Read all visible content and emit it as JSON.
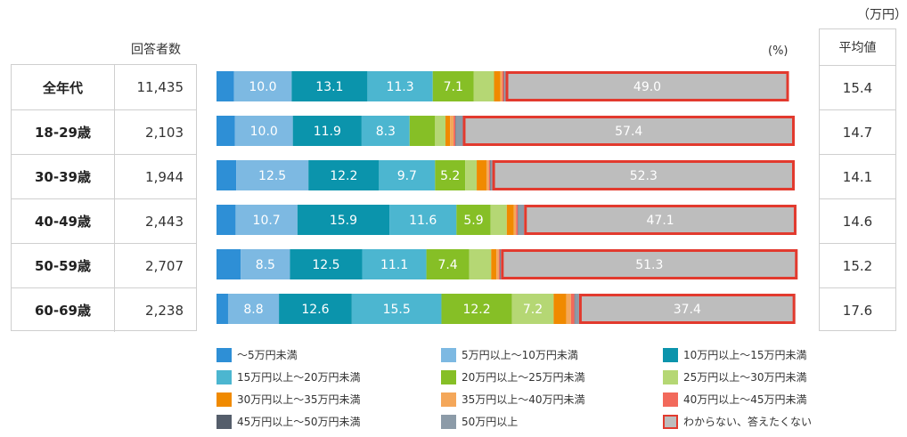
{
  "unit_label": "（万円）",
  "respondents_header": "回答者数",
  "percent_unit": "(%)",
  "average_header": "平均値",
  "chart_data": {
    "type": "bar",
    "orientation": "horizontal",
    "stacked": true,
    "xlim": [
      0,
      100
    ],
    "categories": [
      "全年代",
      "18-29歳",
      "30-39歳",
      "40-49歳",
      "50-59歳",
      "60-69歳"
    ],
    "respondents": [
      "11,435",
      "2,103",
      "1,944",
      "2,443",
      "2,707",
      "2,238"
    ],
    "averages": [
      "15.4",
      "14.7",
      "14.1",
      "14.6",
      "15.2",
      "17.6"
    ],
    "series": [
      {
        "name": "～5万円未満",
        "color": "#2e8fd6",
        "values": [
          3.0,
          3.2,
          3.4,
          3.3,
          4.2,
          2.0
        ]
      },
      {
        "name": "5万円以上～10万円未満",
        "color": "#7db9e2",
        "values": [
          10.0,
          10.0,
          12.5,
          10.7,
          8.5,
          8.8
        ]
      },
      {
        "name": "10万円以上～15万円未満",
        "color": "#0b94ac",
        "values": [
          13.1,
          11.9,
          12.2,
          15.9,
          12.5,
          12.6
        ]
      },
      {
        "name": "15万円以上～20万円未満",
        "color": "#4cb6d0",
        "values": [
          11.3,
          8.3,
          9.7,
          11.6,
          11.1,
          15.5
        ]
      },
      {
        "name": "20万円以上～25万円未満",
        "color": "#86bf26",
        "values": [
          7.1,
          4.4,
          5.2,
          5.9,
          7.4,
          12.2
        ]
      },
      {
        "name": "25万円以上～30万円未満",
        "color": "#b5d774",
        "values": [
          3.5,
          1.8,
          2.0,
          2.8,
          3.8,
          7.2
        ]
      },
      {
        "name": "30万円以上～35万円未満",
        "color": "#f08a00",
        "values": [
          1.1,
          0.8,
          1.7,
          1.2,
          0.9,
          2.2
        ]
      },
      {
        "name": "35万円以上～40万円未満",
        "color": "#f4a75a",
        "values": [
          0.3,
          0.6,
          0.4,
          0.4,
          0.4,
          0.8
        ]
      },
      {
        "name": "40万円以上～45万円未満",
        "color": "#f2695b",
        "values": [
          0.3,
          0.3,
          0.2,
          0.3,
          0.2,
          0.6
        ]
      },
      {
        "name": "45万円以上～50万円未満",
        "color": "#555e6b",
        "values": [
          0.1,
          0.1,
          0.1,
          0.1,
          0.1,
          0.1
        ]
      },
      {
        "name": "50万円以上",
        "color": "#8c9ba8",
        "values": [
          0.2,
          1.2,
          0.3,
          1.0,
          0.1,
          0.7
        ]
      },
      {
        "name": "わからない、答えたくない",
        "color": "#bdbdbd",
        "values": [
          49.0,
          57.4,
          52.3,
          47.1,
          51.3,
          37.4
        ],
        "highlight": "#e23a2e"
      }
    ],
    "data_labels": [
      [
        "",
        "10.0",
        "13.1",
        "11.3",
        "7.1",
        "",
        "",
        "",
        "",
        "",
        "",
        "49.0"
      ],
      [
        "",
        "10.0",
        "11.9",
        "8.3",
        "",
        "",
        "",
        "",
        "",
        "",
        "",
        "57.4"
      ],
      [
        "",
        "12.5",
        "12.2",
        "9.7",
        "5.2",
        "",
        "",
        "",
        "",
        "",
        "",
        "52.3"
      ],
      [
        "",
        "10.7",
        "15.9",
        "11.6",
        "5.9",
        "",
        "",
        "",
        "",
        "",
        "",
        "47.1"
      ],
      [
        "",
        "8.5",
        "12.5",
        "11.1",
        "7.4",
        "",
        "",
        "",
        "",
        "",
        "",
        "51.3"
      ],
      [
        "",
        "8.8",
        "12.6",
        "15.5",
        "12.2",
        "7.2",
        "",
        "",
        "",
        "",
        "",
        "37.4"
      ]
    ]
  }
}
